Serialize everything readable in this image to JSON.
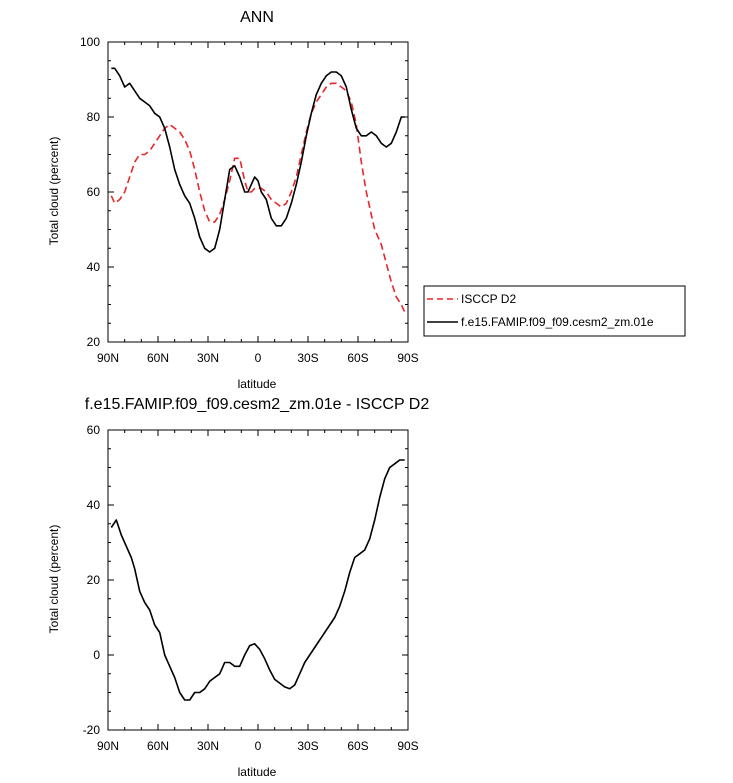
{
  "chart_data": [
    {
      "type": "line",
      "title": "ANN",
      "xlabel": "latitude",
      "ylabel": "Total cloud (percent)",
      "xlim": [
        90,
        -90
      ],
      "ylim": [
        20,
        100
      ],
      "x_ticks": [
        90,
        60,
        30,
        0,
        -30,
        -60,
        -90
      ],
      "x_tick_labels": [
        "90N",
        "60N",
        "30N",
        "0",
        "30S",
        "60S",
        "90S"
      ],
      "y_ticks": [
        20,
        40,
        60,
        80,
        100
      ],
      "y_tick_labels": [
        "20",
        "40",
        "60",
        "80",
        "100"
      ],
      "legend_position": "right",
      "series": [
        {
          "name": "ISCCP D2",
          "color": "#e8262b",
          "dash": "dashed",
          "x": [
            88,
            86,
            83,
            80,
            77,
            74,
            71,
            68,
            65,
            62,
            59,
            56,
            53,
            50,
            47,
            44,
            41,
            38,
            35,
            32,
            29,
            26,
            23,
            20,
            17,
            14,
            11,
            8,
            6,
            4,
            2,
            0,
            -2,
            -5,
            -8,
            -11,
            -14,
            -17,
            -20,
            -23,
            -26,
            -29,
            -32,
            -35,
            -38,
            -41,
            -44,
            -47,
            -50,
            -53,
            -56,
            -59,
            -62,
            -65,
            -68,
            -70,
            -72,
            -74,
            -77,
            -80,
            -83,
            -86,
            -88
          ],
          "y": [
            59,
            57,
            58,
            60,
            64,
            68,
            70,
            70,
            71,
            73,
            75,
            77,
            78,
            77,
            76,
            74,
            71,
            66,
            60,
            55,
            52,
            52,
            54,
            58,
            63,
            69,
            69,
            63,
            60,
            60,
            61,
            61,
            61,
            60,
            58,
            57,
            56,
            57,
            60,
            64,
            70,
            76,
            81,
            84,
            86,
            88,
            89,
            89,
            88,
            87,
            84,
            78,
            68,
            60,
            54,
            50,
            48,
            46,
            41,
            36,
            32,
            30,
            28
          ]
        },
        {
          "name": "f.e15.FAMIP.f09_f09.cesm2_zm.01e",
          "color": "#000000",
          "dash": "solid",
          "x": [
            88,
            86,
            83,
            80,
            77,
            74,
            71,
            68,
            65,
            62,
            59,
            56,
            53,
            50,
            47,
            44,
            41,
            38,
            35,
            32,
            29,
            26,
            23,
            20,
            17,
            14,
            11,
            8,
            6,
            4,
            2,
            0,
            -2,
            -5,
            -8,
            -11,
            -14,
            -17,
            -20,
            -23,
            -26,
            -29,
            -32,
            -35,
            -38,
            -41,
            -44,
            -47,
            -50,
            -53,
            -56,
            -59,
            -62,
            -65,
            -68,
            -71,
            -74,
            -77,
            -80,
            -83,
            -86,
            -88
          ],
          "y": [
            93,
            93,
            91,
            88,
            89,
            87,
            85,
            84,
            83,
            81,
            80,
            77,
            72,
            66,
            62,
            59,
            57,
            53,
            48,
            45,
            44,
            45,
            50,
            58,
            66,
            67,
            64,
            60,
            60,
            62,
            64,
            63,
            60,
            58,
            53,
            51,
            51,
            53,
            57,
            62,
            68,
            75,
            81,
            86,
            89,
            91,
            92,
            92,
            91,
            88,
            82,
            77,
            75,
            75,
            76,
            75,
            73,
            72,
            73,
            76,
            80,
            80
          ]
        }
      ]
    },
    {
      "type": "line",
      "title": "f.e15.FAMIP.f09_f09.cesm2_zm.01e - ISCCP D2",
      "xlabel": "latitude",
      "ylabel": "Total cloud (percent)",
      "xlim": [
        90,
        -90
      ],
      "ylim": [
        -20,
        60
      ],
      "x_ticks": [
        90,
        60,
        30,
        0,
        -30,
        -60,
        -90
      ],
      "x_tick_labels": [
        "90N",
        "60N",
        "30N",
        "0",
        "30S",
        "60S",
        "90S"
      ],
      "y_ticks": [
        -20,
        0,
        20,
        40,
        60
      ],
      "y_tick_labels": [
        "-20",
        "0",
        "20",
        "40",
        "60"
      ],
      "series": [
        {
          "color": "#000000",
          "dash": "solid",
          "x": [
            88,
            85,
            82,
            79,
            76,
            74,
            71,
            68,
            65,
            62,
            59,
            56,
            53,
            50,
            47,
            44,
            41,
            38,
            35,
            32,
            29,
            26,
            23,
            20,
            17,
            14,
            11,
            8,
            5,
            2,
            -1,
            -4,
            -7,
            -10,
            -13,
            -16,
            -19,
            -22,
            -25,
            -28,
            -31,
            -34,
            -37,
            -40,
            -43,
            -46,
            -49,
            -52,
            -55,
            -58,
            -61,
            -64,
            -67,
            -70,
            -73,
            -76,
            -79,
            -82,
            -85,
            -88
          ],
          "y": [
            34,
            36,
            32,
            29,
            26,
            23,
            17,
            14,
            12,
            8,
            6,
            0,
            -3,
            -6,
            -10,
            -12,
            -12,
            -10,
            -10,
            -9,
            -7,
            -6,
            -5,
            -2,
            -2,
            -3,
            -3,
            0,
            2.5,
            3,
            1.5,
            -1,
            -4,
            -6.5,
            -7.5,
            -8.5,
            -9,
            -8,
            -5,
            -2,
            0,
            2,
            4,
            6,
            8,
            10,
            13,
            17,
            22,
            26,
            27,
            28,
            31,
            36,
            42,
            47,
            50,
            51,
            52,
            52
          ]
        }
      ]
    }
  ]
}
